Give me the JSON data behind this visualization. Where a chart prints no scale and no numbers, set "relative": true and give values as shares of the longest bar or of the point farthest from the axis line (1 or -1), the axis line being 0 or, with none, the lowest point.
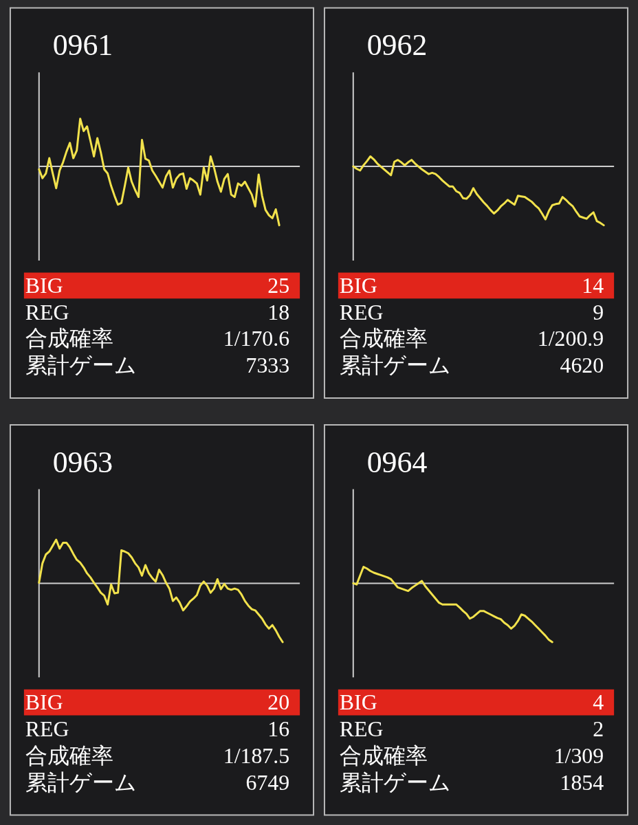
{
  "chart_data": [
    {
      "type": "line",
      "title": "0961",
      "relative": true,
      "color": "#f2e24c",
      "categories": [
        null,
        null,
        null,
        null,
        null,
        null,
        null,
        null,
        null,
        null,
        null,
        null,
        null,
        null,
        null,
        null,
        null,
        null,
        null,
        null,
        null,
        null,
        null,
        null,
        null,
        null,
        null,
        null,
        null,
        null,
        null,
        null,
        null,
        null,
        null,
        null,
        null,
        null,
        null,
        null,
        null,
        null,
        null,
        null,
        null,
        null,
        null,
        null,
        null,
        null,
        null,
        null,
        null,
        null,
        null,
        null,
        null,
        null,
        null,
        null,
        null,
        null,
        null,
        null,
        null,
        null,
        null,
        null,
        null,
        null,
        null,
        null,
        null,
        null,
        null,
        null,
        null
      ],
      "values": [
        -0.05,
        -0.2,
        -0.12,
        0.14,
        -0.12,
        -0.37,
        -0.07,
        0.07,
        0.25,
        0.4,
        0.14,
        0.27,
        0.81,
        0.6,
        0.68,
        0.43,
        0.17,
        0.48,
        0.24,
        -0.05,
        -0.12,
        -0.33,
        -0.5,
        -0.65,
        -0.62,
        -0.33,
        -0.02,
        -0.26,
        -0.4,
        -0.52,
        0.45,
        0.13,
        0.1,
        -0.07,
        -0.16,
        -0.26,
        -0.36,
        -0.17,
        -0.07,
        -0.36,
        -0.21,
        -0.14,
        -0.12,
        -0.38,
        -0.2,
        -0.24,
        -0.29,
        -0.48,
        -0.02,
        -0.24,
        0.17,
        -0.02,
        -0.26,
        -0.43,
        -0.21,
        -0.13,
        -0.48,
        -0.52,
        -0.29,
        -0.33,
        -0.26,
        -0.37,
        -0.48,
        -0.68,
        -0.14,
        -0.5,
        -0.74,
        -0.83,
        -0.88,
        -0.73,
        -1,
        null,
        null,
        null,
        null,
        null,
        null
      ],
      "annotations": [
        "BIG",
        "25",
        "REG",
        "18",
        "合成確率",
        "1/170.6",
        "累計ゲーム",
        "7333"
      ]
    },
    {
      "type": "line",
      "title": "0962",
      "relative": true,
      "color": "#f2e24c",
      "categories": [
        null,
        null,
        null,
        null,
        null,
        null,
        null,
        null,
        null,
        null,
        null,
        null,
        null,
        null,
        null,
        null,
        null,
        null,
        null,
        null,
        null,
        null,
        null,
        null,
        null,
        null,
        null,
        null,
        null,
        null,
        null,
        null,
        null,
        null,
        null,
        null,
        null,
        null,
        null,
        null,
        null,
        null,
        null,
        null,
        null,
        null,
        null,
        null,
        null,
        null,
        null,
        null,
        null,
        null,
        null,
        null,
        null,
        null,
        null,
        null,
        null,
        null,
        null,
        null,
        null,
        null,
        null,
        null,
        null,
        null,
        null,
        null,
        null,
        null,
        null,
        null,
        null
      ],
      "values": [
        0,
        -0.04,
        -0.07,
        0.02,
        0.09,
        0.17,
        0.12,
        0.05,
        0,
        -0.05,
        -0.1,
        -0.15,
        0.08,
        0.11,
        0.07,
        0.02,
        0.07,
        0.11,
        0.05,
        0,
        -0.05,
        -0.09,
        -0.13,
        -0.11,
        -0.13,
        -0.18,
        -0.24,
        -0.29,
        -0.34,
        -0.34,
        -0.42,
        -0.45,
        -0.54,
        -0.55,
        -0.49,
        -0.37,
        -0.47,
        -0.54,
        -0.61,
        -0.67,
        -0.74,
        -0.8,
        -0.75,
        -0.68,
        -0.63,
        -0.57,
        -0.61,
        -0.65,
        -0.5,
        -0.51,
        -0.52,
        -0.56,
        -0.6,
        -0.66,
        -0.71,
        -0.8,
        -0.9,
        -0.76,
        -0.66,
        -0.64,
        -0.63,
        -0.52,
        -0.57,
        -0.63,
        -0.68,
        -0.77,
        -0.85,
        -0.87,
        -0.89,
        -0.83,
        -0.78,
        -0.93,
        -0.96,
        -1,
        null,
        null,
        null
      ],
      "annotations": [
        "BIG",
        "14",
        "REG",
        "9",
        "合成確率",
        "1/200.9",
        "累計ゲーム",
        "4620"
      ]
    },
    {
      "type": "line",
      "title": "0963",
      "relative": true,
      "color": "#f2e24c",
      "categories": [
        null,
        null,
        null,
        null,
        null,
        null,
        null,
        null,
        null,
        null,
        null,
        null,
        null,
        null,
        null,
        null,
        null,
        null,
        null,
        null,
        null,
        null,
        null,
        null,
        null,
        null,
        null,
        null,
        null,
        null,
        null,
        null,
        null,
        null,
        null,
        null,
        null,
        null,
        null,
        null,
        null,
        null,
        null,
        null,
        null,
        null,
        null,
        null,
        null,
        null,
        null,
        null,
        null,
        null,
        null,
        null,
        null,
        null,
        null,
        null,
        null,
        null,
        null,
        null,
        null,
        null,
        null,
        null,
        null,
        null,
        null,
        null,
        null,
        null,
        null,
        null,
        null
      ],
      "values": [
        0.01,
        0.34,
        0.49,
        0.54,
        0.64,
        0.74,
        0.59,
        0.69,
        0.69,
        0.61,
        0.5,
        0.4,
        0.35,
        0.27,
        0.17,
        0.1,
        0.01,
        -0.07,
        -0.16,
        -0.21,
        -0.36,
        -0.02,
        -0.17,
        -0.16,
        0.56,
        0.54,
        0.51,
        0.44,
        0.34,
        0.27,
        0.13,
        0.31,
        0.17,
        0.09,
        0.03,
        0.23,
        0.14,
        0.01,
        -0.09,
        -0.3,
        -0.24,
        -0.33,
        -0.46,
        -0.39,
        -0.31,
        -0.26,
        -0.2,
        -0.04,
        0.03,
        -0.04,
        -0.16,
        -0.09,
        0.07,
        -0.1,
        -0.01,
        -0.09,
        -0.11,
        -0.09,
        -0.11,
        -0.19,
        -0.3,
        -0.38,
        -0.44,
        -0.46,
        -0.53,
        -0.6,
        -0.7,
        -0.77,
        -0.71,
        -0.8,
        -0.91,
        -1,
        null,
        null,
        null,
        null,
        null
      ],
      "annotations": [
        "BIG",
        "20",
        "REG",
        "16",
        "合成確率",
        "1/187.5",
        "累計ゲーム",
        "6749"
      ]
    },
    {
      "type": "line",
      "title": "0964",
      "relative": true,
      "color": "#f2e24c",
      "categories": [
        null,
        null,
        null,
        null,
        null,
        null,
        null,
        null,
        null,
        null,
        null,
        null,
        null,
        null,
        null,
        null,
        null,
        null,
        null,
        null,
        null,
        null,
        null,
        null,
        null,
        null,
        null,
        null,
        null,
        null,
        null,
        null,
        null,
        null,
        null,
        null,
        null,
        null,
        null,
        null,
        null,
        null,
        null,
        null,
        null,
        null,
        null,
        null,
        null,
        null,
        null,
        null,
        null,
        null,
        null,
        null,
        null,
        null,
        null,
        null,
        null,
        null,
        null,
        null,
        null,
        null,
        null,
        null,
        null,
        null,
        null,
        null,
        null,
        null,
        null,
        null,
        null
      ],
      "values": [
        0,
        -0.02,
        0.13,
        0.28,
        0.25,
        0.21,
        0.18,
        0.16,
        0.14,
        0.12,
        0.1,
        0.07,
        0,
        -0.07,
        -0.09,
        -0.11,
        -0.13,
        -0.08,
        -0.04,
        0,
        0.04,
        -0.05,
        -0.12,
        -0.19,
        -0.26,
        -0.33,
        -0.36,
        -0.36,
        -0.36,
        -0.36,
        -0.36,
        -0.41,
        -0.47,
        -0.52,
        -0.6,
        -0.57,
        -0.52,
        -0.47,
        -0.47,
        -0.5,
        -0.53,
        -0.56,
        -0.59,
        -0.61,
        -0.67,
        -0.71,
        -0.77,
        -0.72,
        -0.64,
        -0.53,
        -0.55,
        -0.6,
        -0.65,
        -0.71,
        -0.77,
        -0.83,
        -0.89,
        -0.96,
        -1,
        null,
        null,
        null,
        null,
        null,
        null,
        null,
        null,
        null,
        null,
        null,
        null,
        null,
        null,
        null,
        null,
        null,
        null
      ],
      "annotations": [
        "BIG",
        "4",
        "REG",
        "2",
        "合成確率",
        "1/309",
        "累計ゲーム",
        "1854"
      ]
    }
  ]
}
